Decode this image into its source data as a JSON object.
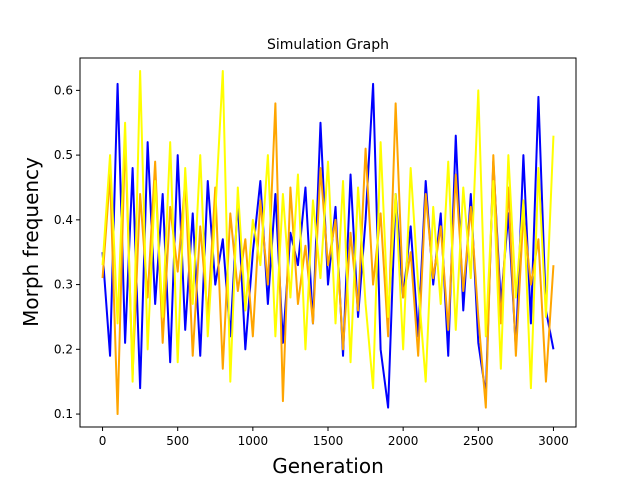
{
  "chart_data": {
    "type": "line",
    "title": "Simulation Graph",
    "xlabel": "Generation",
    "ylabel": "Morph frequency",
    "xlim": [
      -150,
      3150
    ],
    "ylim": [
      0.08,
      0.65
    ],
    "xticks": [
      0,
      500,
      1000,
      1500,
      2000,
      2500,
      3000
    ],
    "yticks": [
      0.1,
      0.2,
      0.3,
      0.4,
      0.5,
      0.6
    ],
    "grid": false,
    "legend": "none",
    "series": [
      {
        "color": "#0000ff",
        "x": [
          0,
          50,
          100,
          150,
          200,
          250,
          300,
          350,
          400,
          450,
          500,
          550,
          600,
          650,
          700,
          750,
          800,
          850,
          900,
          950,
          1000,
          1050,
          1100,
          1150,
          1200,
          1250,
          1300,
          1350,
          1400,
          1450,
          1500,
          1550,
          1600,
          1650,
          1700,
          1750,
          1800,
          1850,
          1900,
          1950,
          2000,
          2050,
          2100,
          2150,
          2200,
          2250,
          2300,
          2350,
          2400,
          2450,
          2500,
          2550,
          2600,
          2650,
          2700,
          2750,
          2800,
          2850,
          2900,
          2950,
          3000
        ],
        "y": [
          0.35,
          0.19,
          0.61,
          0.21,
          0.48,
          0.14,
          0.52,
          0.27,
          0.44,
          0.18,
          0.5,
          0.23,
          0.41,
          0.19,
          0.46,
          0.3,
          0.37,
          0.22,
          0.43,
          0.2,
          0.35,
          0.46,
          0.27,
          0.44,
          0.21,
          0.38,
          0.33,
          0.45,
          0.24,
          0.55,
          0.3,
          0.42,
          0.19,
          0.47,
          0.25,
          0.4,
          0.61,
          0.2,
          0.11,
          0.44,
          0.28,
          0.39,
          0.22,
          0.46,
          0.3,
          0.41,
          0.19,
          0.53,
          0.26,
          0.44,
          0.21,
          0.13,
          0.49,
          0.27,
          0.41,
          0.2,
          0.5,
          0.24,
          0.59,
          0.26,
          0.2
        ]
      },
      {
        "color": "#ffa500",
        "x": [
          0,
          50,
          100,
          150,
          200,
          250,
          300,
          350,
          400,
          450,
          500,
          550,
          600,
          650,
          700,
          750,
          800,
          850,
          900,
          950,
          1000,
          1050,
          1100,
          1150,
          1200,
          1250,
          1300,
          1350,
          1400,
          1450,
          1500,
          1550,
          1600,
          1650,
          1700,
          1750,
          1800,
          1850,
          1900,
          1950,
          2000,
          2050,
          2100,
          2150,
          2200,
          2250,
          2300,
          2350,
          2400,
          2450,
          2500,
          2550,
          2600,
          2650,
          2700,
          2750,
          2800,
          2850,
          2900,
          2950,
          3000
        ],
        "y": [
          0.31,
          0.47,
          0.1,
          0.53,
          0.16,
          0.44,
          0.28,
          0.49,
          0.21,
          0.42,
          0.32,
          0.46,
          0.19,
          0.39,
          0.25,
          0.45,
          0.17,
          0.41,
          0.29,
          0.37,
          0.22,
          0.43,
          0.3,
          0.58,
          0.12,
          0.45,
          0.27,
          0.36,
          0.24,
          0.48,
          0.33,
          0.4,
          0.2,
          0.38,
          0.26,
          0.51,
          0.3,
          0.41,
          0.22,
          0.58,
          0.28,
          0.35,
          0.19,
          0.44,
          0.31,
          0.39,
          0.23,
          0.47,
          0.29,
          0.42,
          0.25,
          0.11,
          0.5,
          0.24,
          0.45,
          0.19,
          0.41,
          0.3,
          0.37,
          0.15,
          0.33
        ]
      },
      {
        "color": "#ffff00",
        "x": [
          0,
          50,
          100,
          150,
          200,
          250,
          300,
          350,
          400,
          450,
          500,
          550,
          600,
          650,
          700,
          750,
          800,
          850,
          900,
          950,
          1000,
          1050,
          1100,
          1150,
          1200,
          1250,
          1300,
          1350,
          1400,
          1450,
          1500,
          1550,
          1600,
          1650,
          1700,
          1750,
          1800,
          1850,
          1900,
          1950,
          2000,
          2050,
          2100,
          2150,
          2200,
          2250,
          2300,
          2350,
          2400,
          2450,
          2500,
          2550,
          2600,
          2650,
          2700,
          2750,
          2800,
          2850,
          2900,
          2950,
          3000
        ],
        "y": [
          0.33,
          0.5,
          0.24,
          0.55,
          0.15,
          0.63,
          0.2,
          0.46,
          0.25,
          0.52,
          0.18,
          0.48,
          0.27,
          0.5,
          0.22,
          0.41,
          0.63,
          0.15,
          0.45,
          0.26,
          0.4,
          0.33,
          0.5,
          0.22,
          0.44,
          0.28,
          0.47,
          0.2,
          0.43,
          0.31,
          0.49,
          0.24,
          0.46,
          0.18,
          0.45,
          0.27,
          0.14,
          0.52,
          0.25,
          0.44,
          0.2,
          0.48,
          0.3,
          0.15,
          0.42,
          0.27,
          0.49,
          0.23,
          0.45,
          0.31,
          0.6,
          0.22,
          0.46,
          0.17,
          0.5,
          0.28,
          0.43,
          0.14,
          0.48,
          0.25,
          0.53
        ]
      }
    ]
  }
}
